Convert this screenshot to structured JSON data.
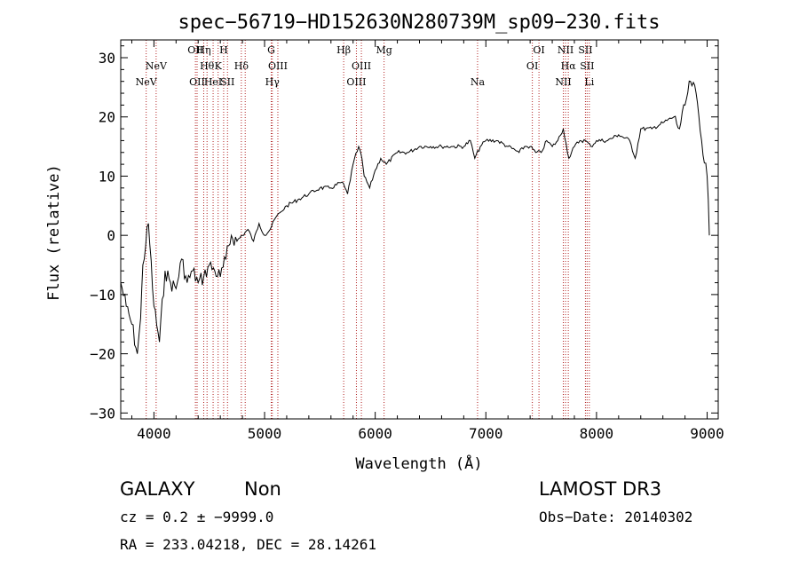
{
  "chart_data": {
    "type": "line",
    "title": "spec−56719−HD152630N280739M_sp09−230.fits",
    "xlabel": "Wavelength (Å)",
    "ylabel": "Flux (relative)",
    "xlim": [
      3700,
      9100
    ],
    "ylim": [
      -31,
      33
    ],
    "x_ticks": [
      4000,
      5000,
      6000,
      7000,
      8000,
      9000
    ],
    "y_ticks": [
      -30,
      -20,
      -10,
      0,
      10,
      20,
      30
    ],
    "y_tick_labels": [
      "−30",
      "−20",
      "−10",
      "0",
      "10",
      "20",
      "30"
    ],
    "grid": false,
    "line_color": "#000000",
    "marker_color": "#b22222",
    "spectrum": {
      "x": [
        3700,
        3750,
        3800,
        3850,
        3880,
        3900,
        3950,
        4000,
        4050,
        4100,
        4150,
        4200,
        4250,
        4300,
        4350,
        4400,
        4450,
        4500,
        4550,
        4600,
        4650,
        4700,
        4750,
        4800,
        4850,
        4900,
        4950,
        5000,
        5050,
        5100,
        5150,
        5200,
        5300,
        5400,
        5500,
        5600,
        5700,
        5750,
        5800,
        5850,
        5880,
        5900,
        5950,
        6000,
        6050,
        6100,
        6200,
        6300,
        6400,
        6500,
        6600,
        6700,
        6800,
        6860,
        6900,
        6950,
        7000,
        7100,
        7200,
        7300,
        7350,
        7400,
        7450,
        7500,
        7550,
        7600,
        7650,
        7700,
        7750,
        7800,
        7850,
        7900,
        7950,
        8000,
        8100,
        8200,
        8300,
        8350,
        8400,
        8500,
        8600,
        8700,
        8750,
        8800,
        8850,
        8900,
        8950,
        9000,
        9020
      ],
      "y": [
        -8,
        -12,
        -15,
        -20,
        -14,
        -5,
        2,
        -12,
        -18,
        -6,
        -8,
        -9,
        -4,
        -8,
        -6,
        -8,
        -7,
        -5,
        -6,
        -7,
        -4,
        0,
        -1,
        0,
        1,
        -1,
        2,
        0,
        1,
        3,
        4,
        5,
        6,
        7,
        8,
        8,
        9,
        7,
        12,
        15,
        13,
        10,
        8,
        11,
        13,
        12,
        14,
        14,
        15,
        15,
        15,
        15,
        15,
        16,
        13,
        15,
        16,
        16,
        15,
        14,
        15,
        15,
        14,
        14,
        16,
        15,
        16,
        18,
        13,
        15,
        16,
        16,
        15,
        16,
        16,
        17,
        16,
        13,
        18,
        18,
        19,
        20,
        18,
        22,
        26,
        24,
        16,
        10,
        0
      ]
    },
    "line_markers": [
      {
        "x": 3930,
        "label": "NeV",
        "row": 3
      },
      {
        "x": 4020,
        "label": "NeV",
        "row": 2
      },
      {
        "x": 4375,
        "label": "OII",
        "row": 1
      },
      {
        "x": 4390,
        "label": "OII",
        "row": 3
      },
      {
        "x": 4450,
        "label": "Hη",
        "row": 1
      },
      {
        "x": 4480,
        "label": "Hθ",
        "row": 2
      },
      {
        "x": 4535,
        "label": "HeI",
        "row": 3
      },
      {
        "x": 4580,
        "label": "K",
        "row": 2
      },
      {
        "x": 4630,
        "label": "H",
        "row": 1
      },
      {
        "x": 4665,
        "label": "SII",
        "row": 3
      },
      {
        "x": 4790,
        "label": "Hδ",
        "row": 2
      },
      {
        "x": 4825,
        "label": "",
        "row": 0
      },
      {
        "x": 5060,
        "label": "G",
        "row": 1
      },
      {
        "x": 5070,
        "label": "Hγ",
        "row": 3
      },
      {
        "x": 5120,
        "label": "OIII",
        "row": 2
      },
      {
        "x": 5715,
        "label": "Hβ",
        "row": 1
      },
      {
        "x": 5830,
        "label": "OIII",
        "row": 3
      },
      {
        "x": 5875,
        "label": "OIII",
        "row": 2
      },
      {
        "x": 6080,
        "label": "Mg",
        "row": 1
      },
      {
        "x": 6925,
        "label": "Na",
        "row": 3
      },
      {
        "x": 7420,
        "label": "OI",
        "row": 2
      },
      {
        "x": 7480,
        "label": "OI",
        "row": 1
      },
      {
        "x": 7700,
        "label": "NII",
        "row": 3
      },
      {
        "x": 7720,
        "label": "NII",
        "row": 1
      },
      {
        "x": 7745,
        "label": "Hα",
        "row": 2
      },
      {
        "x": 7900,
        "label": "SII",
        "row": 1
      },
      {
        "x": 7915,
        "label": "SII",
        "row": 2
      },
      {
        "x": 7935,
        "label": "Li",
        "row": 3
      }
    ]
  },
  "info": {
    "object_class": "GALAXY",
    "subclass": "Non",
    "survey": "LAMOST DR3",
    "cz": "cz = 0.2 ± −9999.0",
    "obs_date": "Obs−Date: 20140302",
    "coords": "RA = 233.04218, DEC =  28.14261"
  }
}
